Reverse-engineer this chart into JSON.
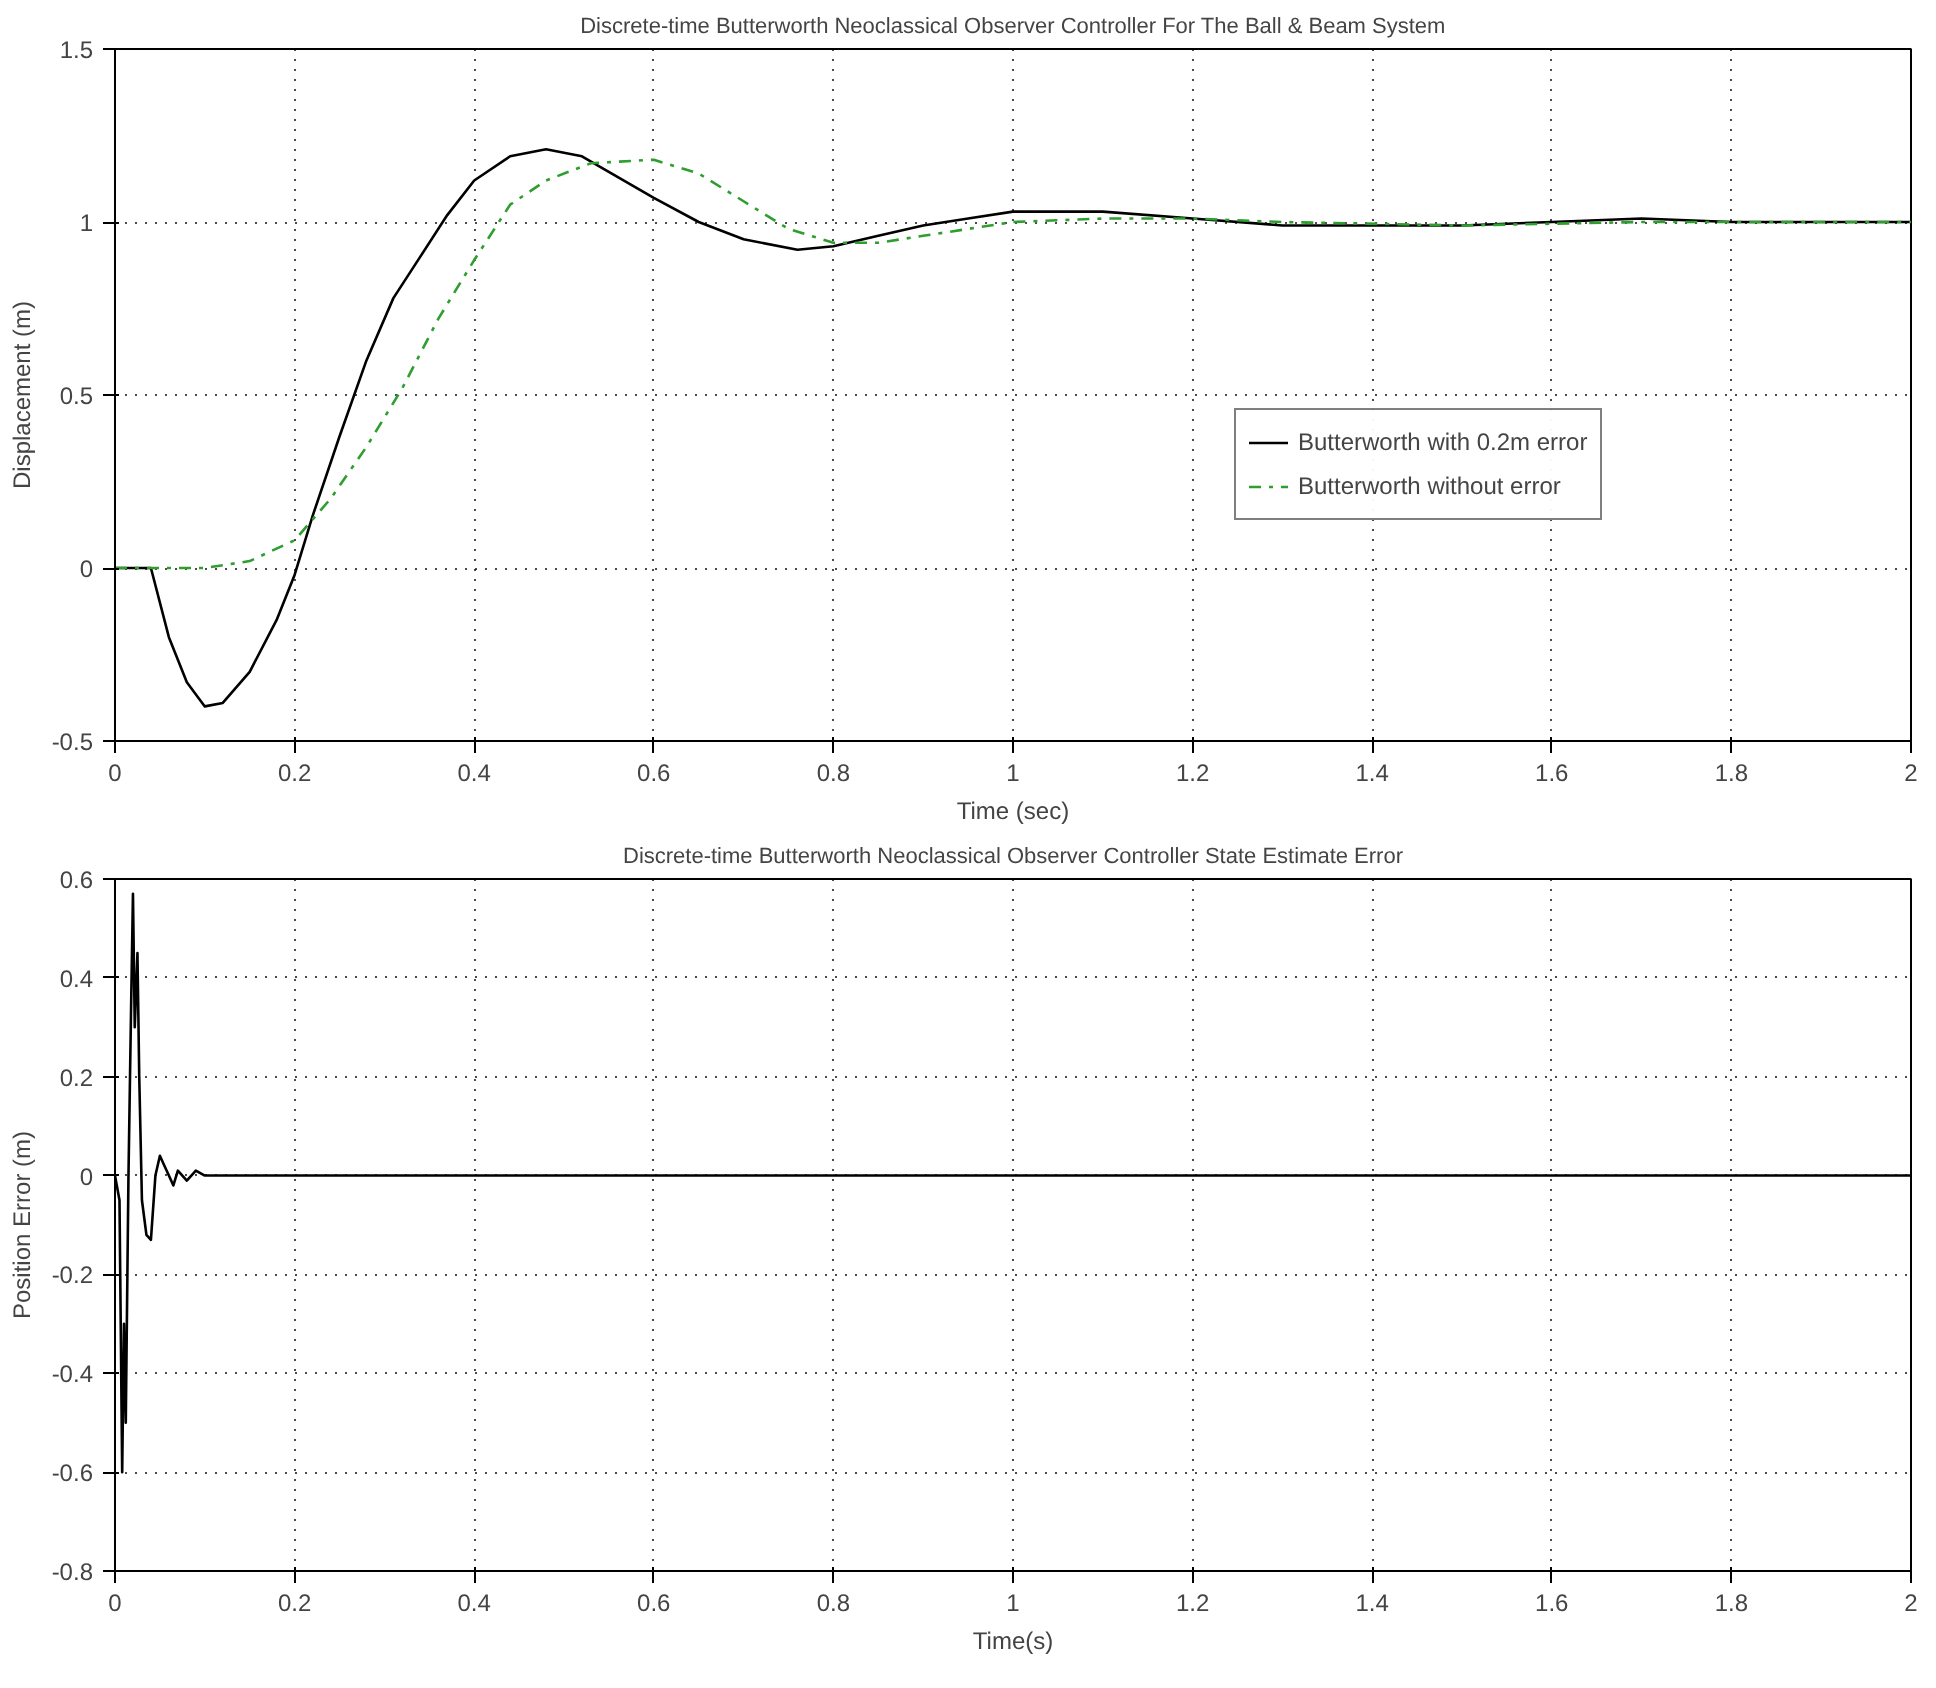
{
  "chart_data": [
    {
      "type": "line",
      "title": "Discrete-time Butterworth Neoclassical Observer Controller For The Ball & Beam System",
      "xlabel": "Time (sec)",
      "ylabel": "Displacement (m)",
      "xlim": [
        0,
        2
      ],
      "ylim": [
        -0.5,
        1.5
      ],
      "xticks": [
        0,
        0.2,
        0.4,
        0.6,
        0.8,
        1,
        1.2,
        1.4,
        1.6,
        1.8,
        2
      ],
      "yticks": [
        -0.5,
        0,
        0.5,
        1,
        1.5
      ],
      "grid": true,
      "legend": "right",
      "series": [
        {
          "name": "Butterworth with 0.2m error",
          "color": "#000000",
          "line_style": "solid",
          "x": [
            0,
            0.04,
            0.06,
            0.08,
            0.1,
            0.12,
            0.15,
            0.18,
            0.2,
            0.22,
            0.25,
            0.28,
            0.31,
            0.34,
            0.37,
            0.4,
            0.44,
            0.48,
            0.52,
            0.56,
            0.6,
            0.65,
            0.7,
            0.76,
            0.8,
            0.85,
            0.9,
            0.95,
            1.0,
            1.1,
            1.2,
            1.3,
            1.4,
            1.5,
            1.6,
            1.7,
            1.8,
            2.0
          ],
          "values": [
            0,
            0,
            -0.2,
            -0.33,
            -0.4,
            -0.39,
            -0.3,
            -0.15,
            -0.02,
            0.15,
            0.38,
            0.6,
            0.78,
            0.9,
            1.02,
            1.12,
            1.19,
            1.21,
            1.19,
            1.13,
            1.07,
            1.0,
            0.95,
            0.92,
            0.93,
            0.96,
            0.99,
            1.01,
            1.03,
            1.03,
            1.01,
            0.99,
            0.99,
            0.99,
            1.0,
            1.01,
            1.0,
            1.0
          ]
        },
        {
          "name": "Butterworth without error",
          "color": "#2e9e2e",
          "line_style": "dashed",
          "x": [
            0,
            0.1,
            0.15,
            0.2,
            0.24,
            0.28,
            0.32,
            0.36,
            0.4,
            0.44,
            0.48,
            0.53,
            0.6,
            0.65,
            0.7,
            0.75,
            0.8,
            0.85,
            0.9,
            0.95,
            1.0,
            1.1,
            1.2,
            1.3,
            1.5,
            1.7,
            2.0
          ],
          "values": [
            0,
            0,
            0.02,
            0.08,
            0.2,
            0.35,
            0.52,
            0.72,
            0.89,
            1.05,
            1.12,
            1.17,
            1.18,
            1.14,
            1.06,
            0.98,
            0.94,
            0.94,
            0.96,
            0.98,
            1.0,
            1.01,
            1.01,
            1.0,
            0.99,
            1.0,
            1.0
          ]
        }
      ]
    },
    {
      "type": "line",
      "title": "Discrete-time Butterworth Neoclassical Observer Controller State Estimate Error",
      "xlabel": "Time(s)",
      "ylabel": "Position Error (m)",
      "xlim": [
        0,
        2
      ],
      "ylim": [
        -0.8,
        0.6
      ],
      "xticks": [
        0,
        0.2,
        0.4,
        0.6,
        0.8,
        1,
        1.2,
        1.4,
        1.6,
        1.8,
        2
      ],
      "yticks": [
        -0.8,
        -0.6,
        -0.4,
        -0.2,
        0,
        0.2,
        0.4,
        0.6
      ],
      "grid": true,
      "series": [
        {
          "color": "#000000",
          "line_style": "solid",
          "x": [
            0,
            0.005,
            0.008,
            0.01,
            0.012,
            0.015,
            0.018,
            0.02,
            0.022,
            0.025,
            0.027,
            0.03,
            0.035,
            0.04,
            0.045,
            0.05,
            0.055,
            0.06,
            0.065,
            0.07,
            0.08,
            0.09,
            0.1,
            2
          ],
          "values": [
            0,
            -0.05,
            -0.6,
            -0.3,
            -0.5,
            0,
            0.35,
            0.57,
            0.3,
            0.45,
            0.2,
            -0.05,
            -0.12,
            -0.13,
            0,
            0.04,
            0.02,
            0,
            -0.02,
            0.01,
            -0.01,
            0.01,
            0,
            0
          ]
        }
      ]
    }
  ]
}
